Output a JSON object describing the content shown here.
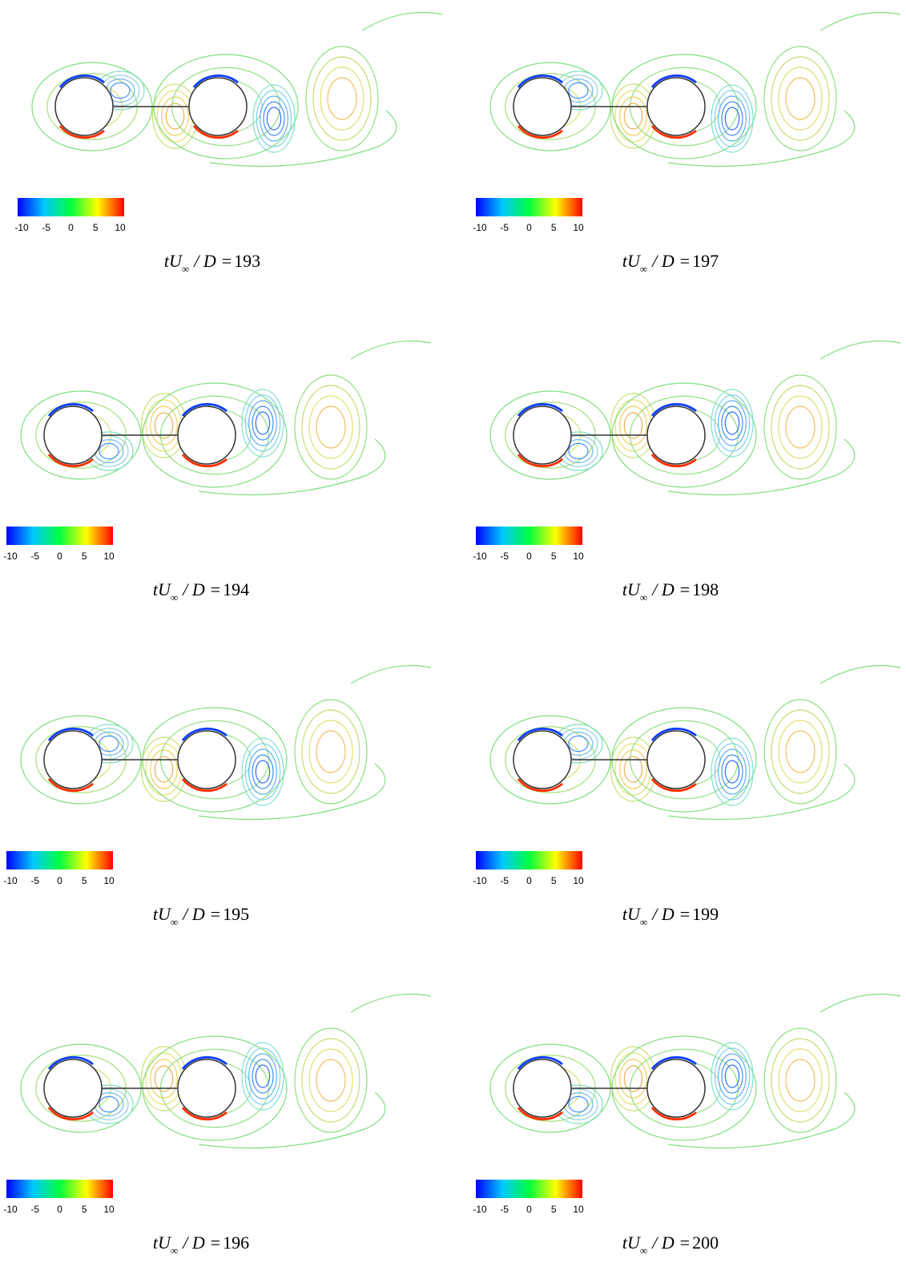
{
  "caption": {
    "lhs": "tU",
    "subscript": "∞",
    "rest": "/ D ="
  },
  "colorbar": {
    "lim": [
      -10,
      10
    ],
    "ticks": [
      -10,
      -5,
      0,
      5,
      10
    ],
    "colors": [
      "#0000ff",
      "#00c8ff",
      "#00ff40",
      "#ffff00",
      "#ff0000"
    ]
  },
  "panels": [
    {
      "time": 193
    },
    {
      "time": 197
    },
    {
      "time": 194
    },
    {
      "time": 198
    },
    {
      "time": 195
    },
    {
      "time": 199
    },
    {
      "time": 196
    },
    {
      "time": 200
    }
  ]
}
